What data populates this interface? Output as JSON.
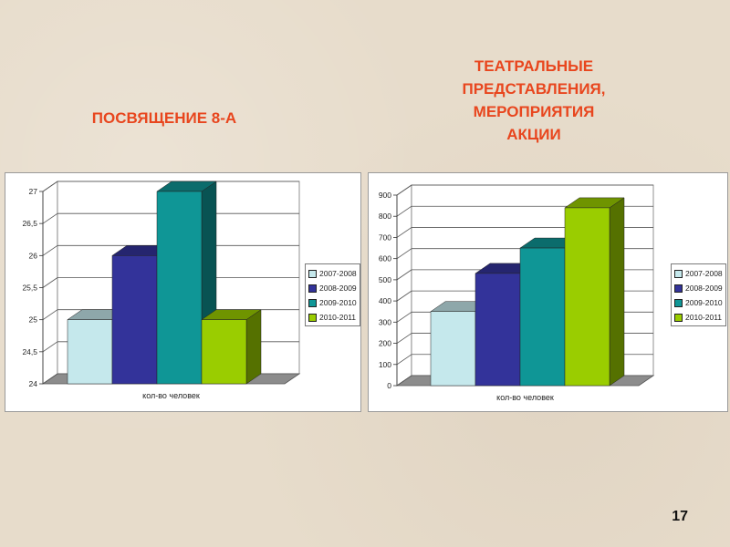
{
  "slide": {
    "title_left": "ПОСВЯЩЕНИЕ 8-А",
    "title_right_lines": [
      "ТЕАТРАЛЬНЫЕ",
      "ПРЕДСТАВЛЕНИЯ,",
      "МЕРОПРИЯТИЯ",
      "АКЦИИ"
    ],
    "page_number": "17"
  },
  "chart_data": [
    {
      "type": "bar",
      "title": "ПОСВЯЩЕНИЕ 8-А",
      "categories": [
        "кол-во человек"
      ],
      "xlabel": "кол-во человек",
      "ylabel": "",
      "ylim": [
        24,
        27
      ],
      "yticks": [
        "24",
        "24,5",
        "25",
        "25,5",
        "26",
        "26,5",
        "27"
      ],
      "series": [
        {
          "name": "2007-2008",
          "values": [
            25
          ],
          "color": "#c5e8ec"
        },
        {
          "name": "2008-2009",
          "values": [
            26
          ],
          "color": "#33339a"
        },
        {
          "name": "2009-2010",
          "values": [
            27
          ],
          "color": "#0f9696"
        },
        {
          "name": "2010-2011",
          "values": [
            25
          ],
          "color": "#9acd00"
        }
      ],
      "legend_position": "right",
      "grid": true
    },
    {
      "type": "bar",
      "title": "ТЕАТРАЛЬНЫЕ ПРЕДСТАВЛЕНИЯ, МЕРОПРИЯТИЯ АКЦИИ",
      "categories": [
        "кол-во человек"
      ],
      "xlabel": "кол-во человек",
      "ylabel": "",
      "ylim": [
        0,
        900
      ],
      "yticks": [
        "0",
        "100",
        "200",
        "300",
        "400",
        "500",
        "600",
        "700",
        "800",
        "900"
      ],
      "series": [
        {
          "name": "2007-2008",
          "values": [
            350
          ],
          "color": "#c5e8ec"
        },
        {
          "name": "2008-2009",
          "values": [
            530
          ],
          "color": "#33339a"
        },
        {
          "name": "2009-2010",
          "values": [
            650
          ],
          "color": "#0f9696"
        },
        {
          "name": "2010-2011",
          "values": [
            840
          ],
          "color": "#9acd00"
        }
      ],
      "legend_position": "right",
      "grid": true
    }
  ]
}
